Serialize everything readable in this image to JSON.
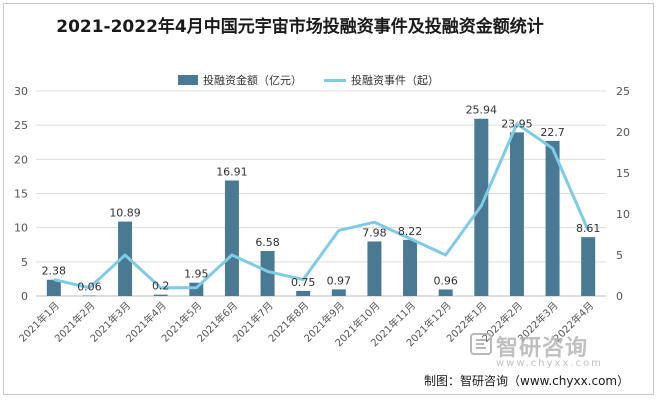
{
  "title": "2021-2022年4月中国元宇宙市场投融资事件及投融资金额统计",
  "legend": {
    "bar": "投融资金额（亿元）",
    "line": "投融资事件（起）"
  },
  "colors": {
    "bar": "#4a7a93",
    "line": "#7fcbe6",
    "grid": "#dcdcdc",
    "axis_text": "#555555"
  },
  "watermark": {
    "text": "智研咨询",
    "url": "www.chyxx.com"
  },
  "source": "制图：智研咨询（www.chyxx.com）",
  "chart_data": {
    "type": "bar",
    "title": "2021-2022年4月中国元宇宙市场投融资事件及投融资金额统计",
    "categories": [
      "2021年1月",
      "2021年2月",
      "2021年3月",
      "2021年4月",
      "2021年5月",
      "2021年6月",
      "2021年7月",
      "2021年8月",
      "2021年9月",
      "2021年10月",
      "2021年11月",
      "2021年12月",
      "2022年1月",
      "2022年2月",
      "2022年3月",
      "2022年4月"
    ],
    "series": [
      {
        "name": "投融资金额（亿元）",
        "type": "bar",
        "axis": "left",
        "values": [
          2.38,
          0.06,
          10.89,
          0.2,
          1.95,
          16.91,
          6.58,
          0.75,
          0.97,
          7.98,
          8.22,
          0.96,
          25.94,
          23.95,
          22.7,
          8.61
        ],
        "labels": [
          "2.38",
          "0.06",
          "10.89",
          "0.2",
          "1.95",
          "16.91",
          "6.58",
          "0.75",
          "0.97",
          "7.98",
          "8.22",
          "0.96",
          "25.94",
          "23.95",
          "22.7",
          "8.61"
        ]
      },
      {
        "name": "投融资事件（起）",
        "type": "line",
        "axis": "right",
        "values": [
          2,
          1,
          5,
          1,
          1,
          5,
          3,
          2,
          8,
          9,
          7,
          5,
          11,
          21,
          18,
          8
        ]
      }
    ],
    "y_left": {
      "min": 0,
      "max": 30,
      "ticks": [
        0,
        5,
        10,
        15,
        20,
        25,
        30
      ]
    },
    "y_right": {
      "min": 0,
      "max": 25,
      "ticks": [
        0,
        5,
        10,
        15,
        20,
        25
      ]
    },
    "grid": true,
    "legend_position": "top-center"
  }
}
